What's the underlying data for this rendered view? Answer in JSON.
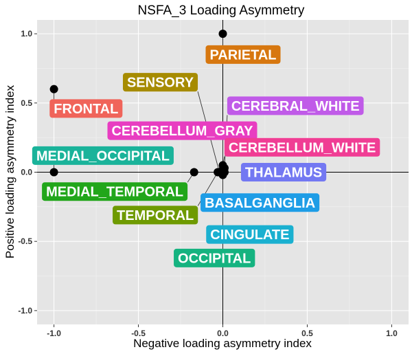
{
  "chart_data": {
    "type": "scatter",
    "title": "NSFA_3 Loading Asymmetry",
    "xlabel": "Negative loading asymmetry index",
    "ylabel": "Positive loading asymmetry index",
    "xlim": [
      -1.1,
      1.1
    ],
    "ylim": [
      -1.1,
      1.1
    ],
    "xticks": [
      -1.0,
      -0.5,
      0.0,
      0.5,
      1.0
    ],
    "yticks": [
      -1.0,
      -0.5,
      0.0,
      0.5,
      1.0
    ],
    "xtick_labels": [
      "-1.0",
      "-0.5",
      "0.0",
      "0.5",
      "1.0"
    ],
    "ytick_labels": [
      "-1.0",
      "-0.5",
      "0.0",
      "0.5",
      "1.0"
    ],
    "grid": true,
    "reference_lines": {
      "x": 0,
      "y": 0
    },
    "legend": "none",
    "points": [
      {
        "label": "PARIETAL",
        "x": 0.0,
        "y": 1.0,
        "color": "#D7770F",
        "label_x": 0.12,
        "label_y": 0.85
      },
      {
        "label": "SENSORY",
        "x": -0.02,
        "y": 0.0,
        "color": "#A68B00",
        "label_x": -0.37,
        "label_y": 0.65
      },
      {
        "label": "FRONTAL",
        "x": -1.0,
        "y": 0.6,
        "color": "#F0645A",
        "label_x": -0.81,
        "label_y": 0.46
      },
      {
        "label": "CEREBRAL_WHITE",
        "x": 0.01,
        "y": 0.03,
        "color": "#C05BE8",
        "label_x": 0.43,
        "label_y": 0.48
      },
      {
        "label": "CEREBELLUM_GRAY",
        "x": 0.0,
        "y": 0.02,
        "color": "#E83DC1",
        "label_x": -0.24,
        "label_y": 0.3
      },
      {
        "label": "CEREBELLUM_WHITE",
        "x": 0.0,
        "y": 0.05,
        "color": "#F03D94",
        "label_x": 0.47,
        "label_y": 0.18
      },
      {
        "label": "MEDIAL_OCCIPITAL",
        "x": -1.0,
        "y": 0.0,
        "color": "#1AB39A",
        "label_x": -0.71,
        "label_y": 0.12
      },
      {
        "label": "THALAMUS",
        "x": 0.01,
        "y": 0.0,
        "color": "#7378F2",
        "label_x": 0.36,
        "label_y": 0.0
      },
      {
        "label": "MEDIAL_TEMPORAL",
        "x": -0.17,
        "y": 0.0,
        "color": "#21A61A",
        "label_x": -0.64,
        "label_y": -0.14
      },
      {
        "label": "BASALGANGLIA",
        "x": 0.0,
        "y": -0.01,
        "color": "#1E9DE6",
        "label_x": 0.22,
        "label_y": -0.22
      },
      {
        "label": "TEMPORAL",
        "x": -0.03,
        "y": 0.0,
        "color": "#6E9A00",
        "label_x": -0.4,
        "label_y": -0.31
      },
      {
        "label": "CINGULATE",
        "x": 0.0,
        "y": -0.02,
        "color": "#1AB0D0",
        "label_x": 0.16,
        "label_y": -0.45
      },
      {
        "label": "OCCIPITAL",
        "x": 0.0,
        "y": -0.01,
        "color": "#15B380",
        "label_x": -0.05,
        "label_y": -0.62
      }
    ]
  }
}
